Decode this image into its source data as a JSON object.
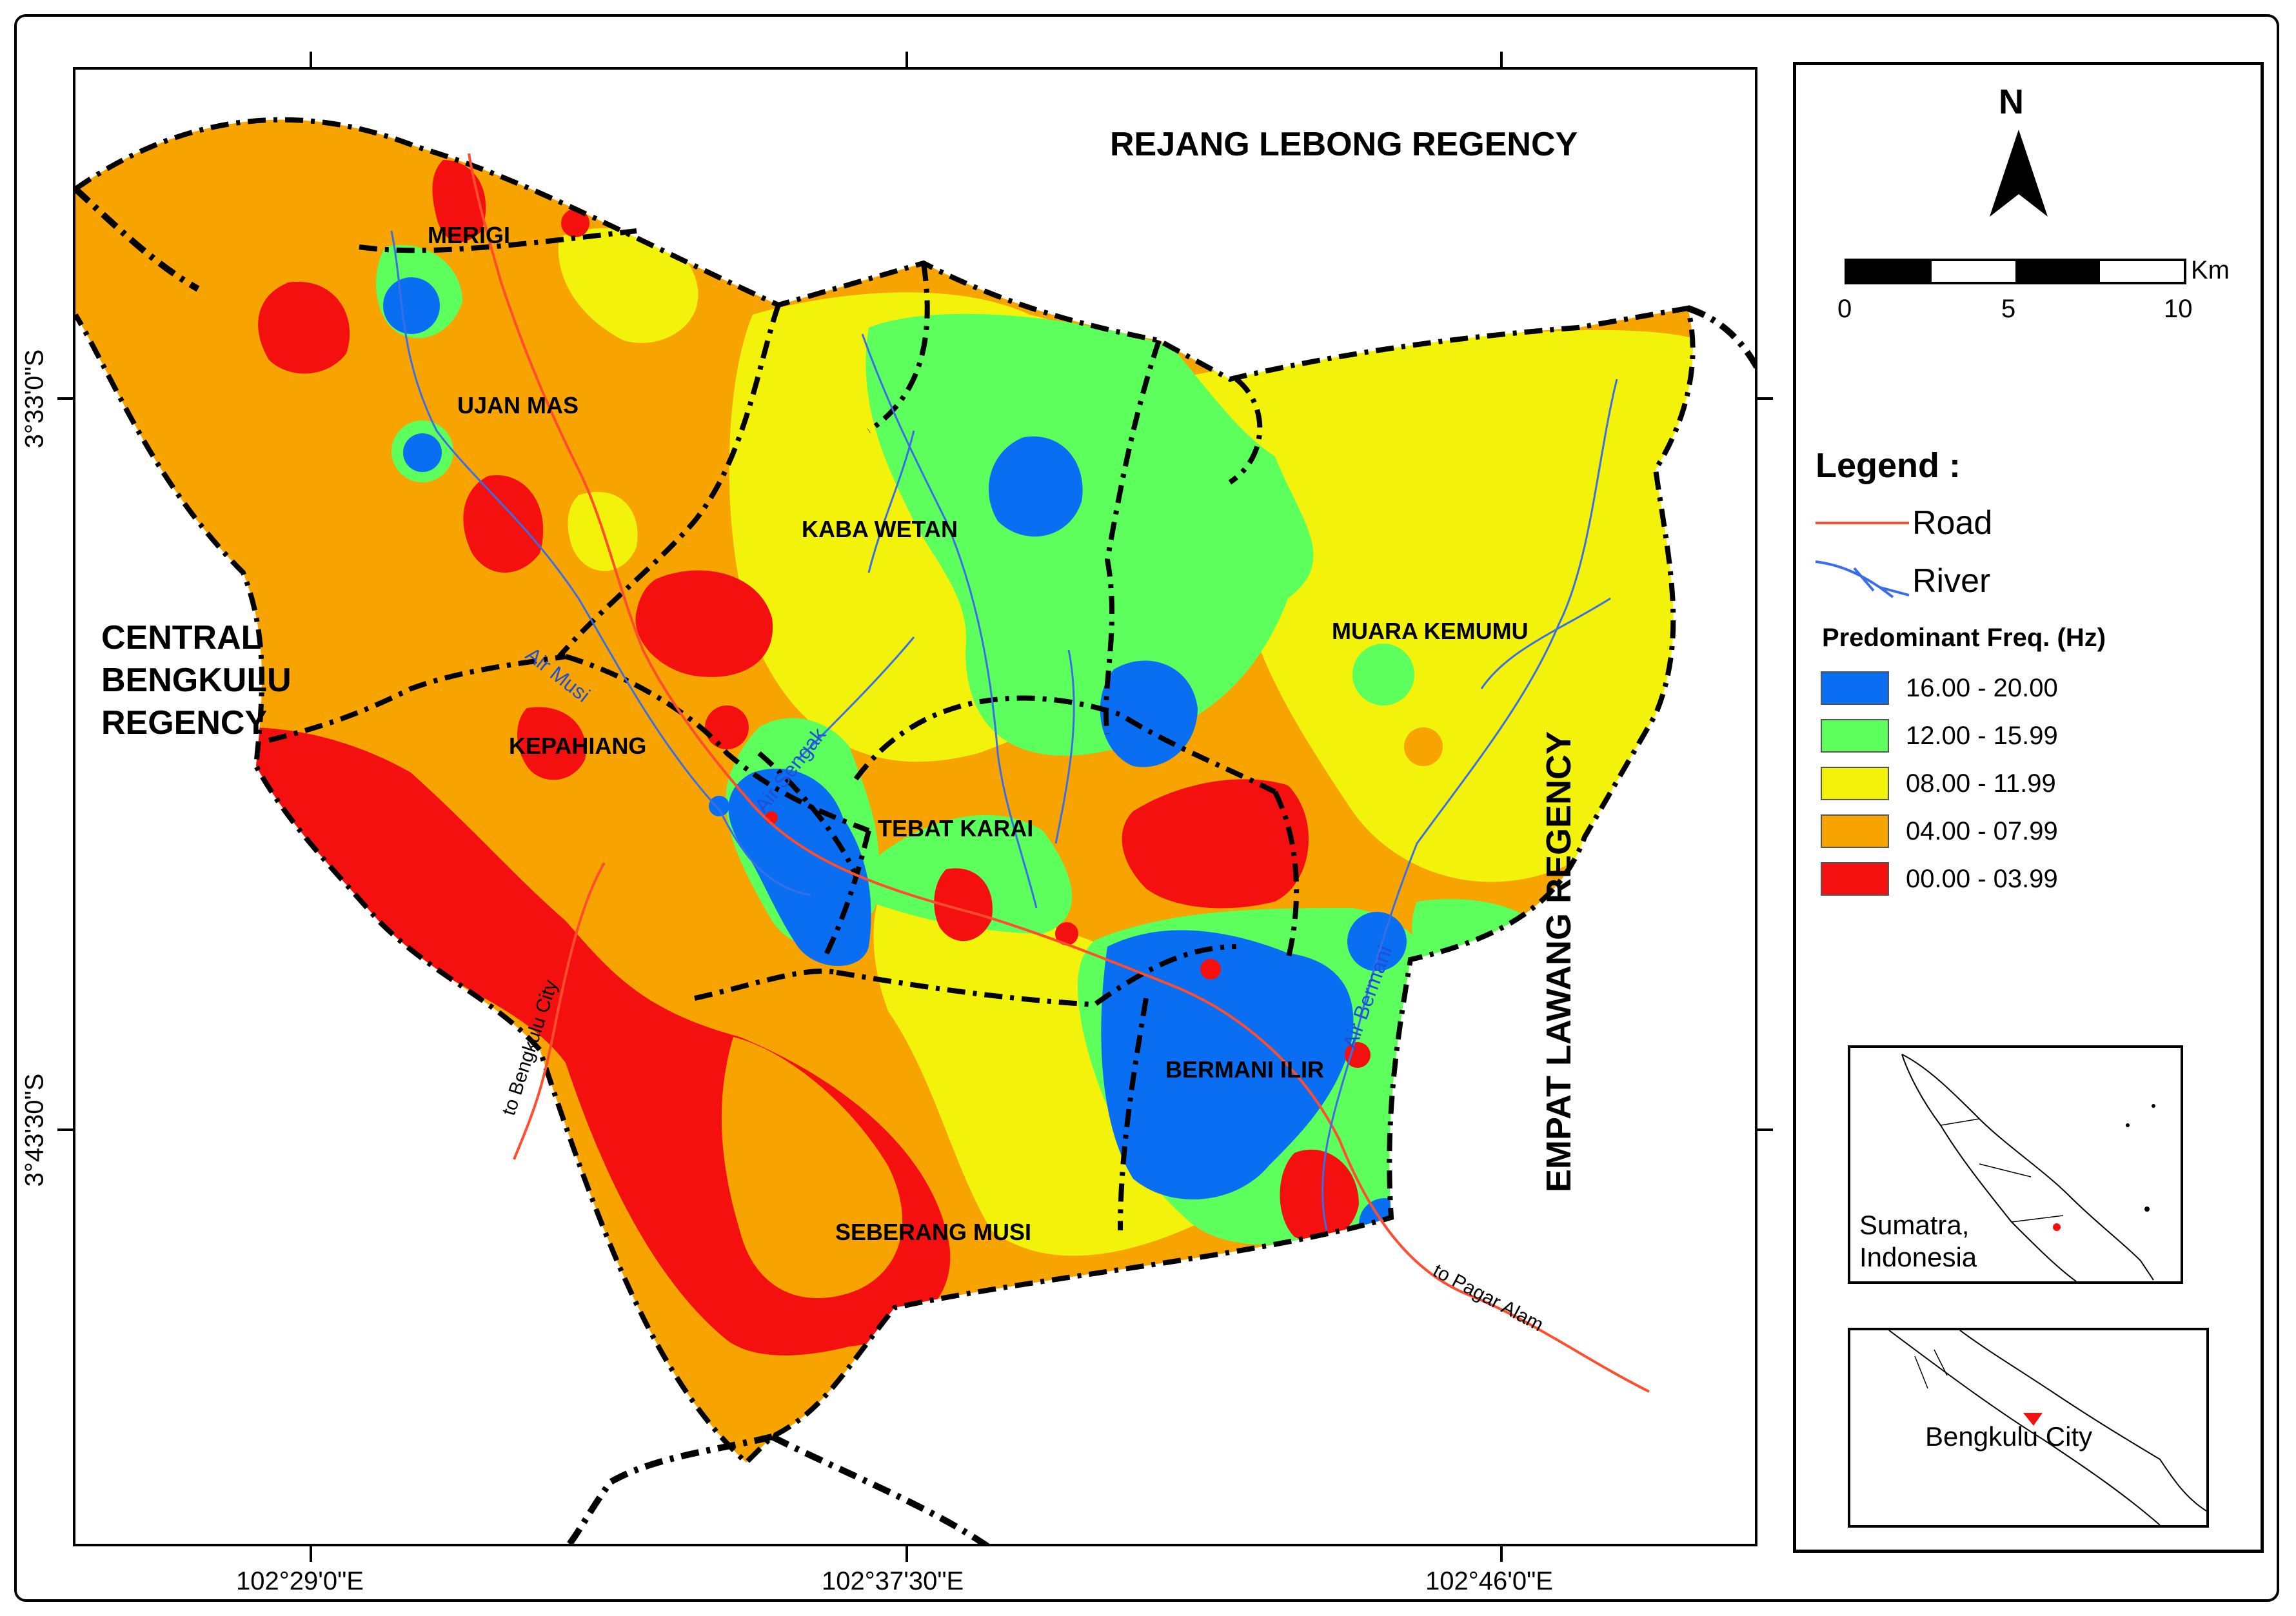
{
  "map": {
    "regencies": {
      "north": "REJANG LEBONG REGENCY",
      "west_line1": "CENTRAL",
      "west_line2": "BENGKULU",
      "west_line3": "REGENCY",
      "east": "EMPAT LAWANG REGENCY"
    },
    "districts": [
      "MERIGI",
      "UJAN MAS",
      "KABA WETAN",
      "MUARA KEMUMU",
      "KEPAHIANG",
      "TEBAT KARAI",
      "BERMANI ILIR",
      "SEBERANG MUSI"
    ],
    "rivers": [
      "Air Musi",
      "Air Sengak",
      "Air Bermani"
    ],
    "roads": [
      "to Bengkulu City",
      "to Pagar Alam"
    ],
    "longitude_ticks": [
      "102°29'0\"E",
      "102°37'30\"E",
      "102°46'0\"E"
    ],
    "latitude_ticks": [
      "3°33'0\"S",
      "3°43'30\"S"
    ]
  },
  "north_arrow": {
    "label": "N"
  },
  "scale_bar": {
    "unit": "Km",
    "ticks": [
      "0",
      "5",
      "10"
    ]
  },
  "legend": {
    "title": "Legend :",
    "road_label": "Road",
    "river_label": "River",
    "freq_title": "Predominant Freq. (Hz)",
    "classes": [
      {
        "label": "16.00 - 20.00",
        "color": "#0a6ef2"
      },
      {
        "label": "12.00 - 15.99",
        "color": "#5cff5c"
      },
      {
        "label": "08.00 - 11.99",
        "color": "#f2f20a"
      },
      {
        "label": "04.00 - 07.99",
        "color": "#f7a400"
      },
      {
        "label": "00.00 - 03.99",
        "color": "#f51010"
      }
    ]
  },
  "insets": {
    "sumatra_line1": "Sumatra,",
    "sumatra_line2": "Indonesia",
    "bengkulu": "Bengkulu City"
  },
  "colors": {
    "road": "#ff4d2e",
    "river": "#3a6ee8",
    "boundary": "#000000"
  }
}
